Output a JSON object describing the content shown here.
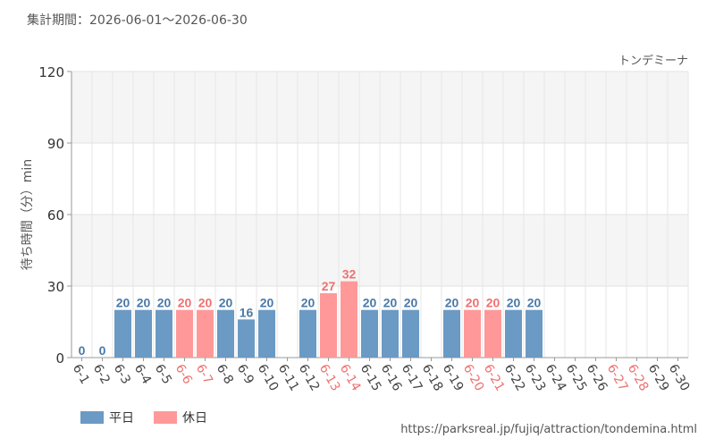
{
  "header": {
    "period": "集計期間：2026-06-01～2026-06-30"
  },
  "footer": {
    "url": "https://parksreal.jp/fujiq/attraction/tondemina.html"
  },
  "colors": {
    "weekday": "#6b9ac4",
    "holiday": "#ff9999",
    "weekday_label": "#4a7aa8",
    "holiday_label": "#f07070",
    "axis_label": "#444444"
  },
  "chart_data": {
    "type": "bar",
    "title": "トンデミーナ",
    "xlabel": "",
    "ylabel": "待ち時間（分）min",
    "ylim": [
      0,
      120
    ],
    "yticks": [
      0,
      30,
      60,
      90,
      120
    ],
    "grid": true,
    "legend_position": "bottom-left",
    "categories": [
      "6-1",
      "6-2",
      "6-3",
      "6-4",
      "6-5",
      "6-6",
      "6-7",
      "6-8",
      "6-9",
      "6-10",
      "6-11",
      "6-12",
      "6-13",
      "6-14",
      "6-15",
      "6-16",
      "6-17",
      "6-18",
      "6-19",
      "6-20",
      "6-21",
      "6-22",
      "6-23",
      "6-24",
      "6-25",
      "6-26",
      "6-27",
      "6-28",
      "6-29",
      "6-30"
    ],
    "values": [
      0,
      0,
      20,
      20,
      20,
      20,
      20,
      20,
      16,
      20,
      null,
      20,
      27,
      32,
      20,
      20,
      20,
      null,
      20,
      20,
      20,
      20,
      20,
      null,
      null,
      null,
      null,
      null,
      null,
      null
    ],
    "holiday": [
      false,
      false,
      false,
      false,
      false,
      true,
      true,
      false,
      false,
      false,
      false,
      false,
      true,
      true,
      false,
      false,
      false,
      false,
      false,
      true,
      true,
      false,
      false,
      false,
      false,
      false,
      true,
      true,
      false,
      false
    ],
    "legend": [
      {
        "key": "weekday",
        "label": "平日"
      },
      {
        "key": "holiday",
        "label": "休日"
      }
    ]
  }
}
